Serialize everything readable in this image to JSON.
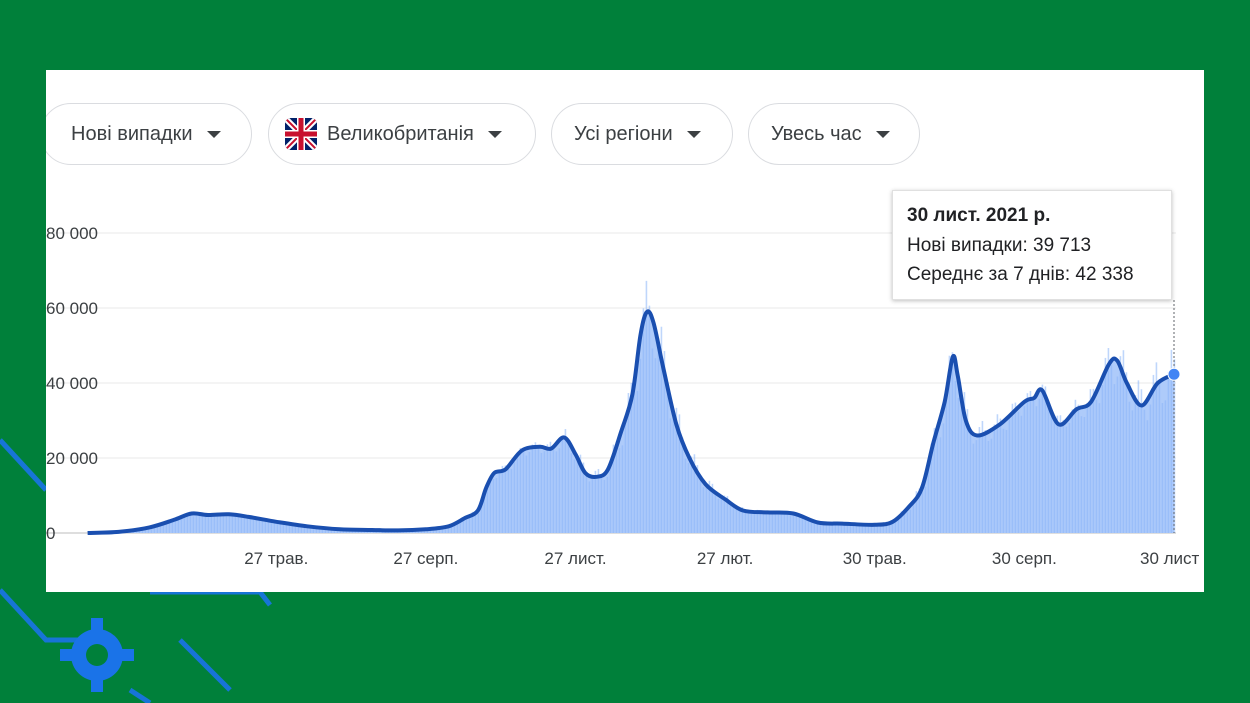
{
  "filters": [
    {
      "label": "Нові випадки"
    },
    {
      "label": "Великобританія",
      "flag_icon": "uk-flag-icon"
    },
    {
      "label": "Усі регіони"
    },
    {
      "label": "Увесь час"
    }
  ],
  "tooltip": {
    "date": "30 лист. 2021 р.",
    "new_cases": "Нові випадки: 39 713",
    "avg7": "Середнє за 7 днів: 42 338"
  },
  "colors": {
    "background": "#00803a",
    "line": "#1a4fb0",
    "area": "#aecbfa",
    "bars": "#8ab4f8",
    "deco": "#1a73e8"
  },
  "chart_data": {
    "type": "area",
    "title": "",
    "xlabel": "",
    "ylabel": "",
    "ylim": [
      0,
      80000
    ],
    "yticks": [
      {
        "value": 0,
        "label": "0"
      },
      {
        "value": 20000,
        "label": "20 000"
      },
      {
        "value": 40000,
        "label": "40 000"
      },
      {
        "value": 60000,
        "label": "60 000"
      },
      {
        "value": 80000,
        "label": "80 000"
      }
    ],
    "xticks": [
      {
        "date": "2020-05-27",
        "label": "27 трав."
      },
      {
        "date": "2020-08-27",
        "label": "27 серп."
      },
      {
        "date": "2020-11-27",
        "label": "27 лист."
      },
      {
        "date": "2021-02-27",
        "label": "27 лют."
      },
      {
        "date": "2021-05-30",
        "label": "30 трав."
      },
      {
        "date": "2021-08-30",
        "label": "30 серп."
      },
      {
        "date": "2021-11-30",
        "label": "30 лист"
      }
    ],
    "xrange": [
      "2020-01-31",
      "2021-11-30"
    ],
    "grid": true,
    "series": [
      {
        "name": "Середнє за 7 днів",
        "points": [
          [
            "2020-02-01",
            0
          ],
          [
            "2020-02-20",
            300
          ],
          [
            "2020-03-10",
            1500
          ],
          [
            "2020-03-25",
            3500
          ],
          [
            "2020-04-05",
            5200
          ],
          [
            "2020-04-15",
            4800
          ],
          [
            "2020-04-28",
            5000
          ],
          [
            "2020-05-10",
            4300
          ],
          [
            "2020-05-27",
            3000
          ],
          [
            "2020-06-15",
            1800
          ],
          [
            "2020-07-05",
            1000
          ],
          [
            "2020-07-25",
            800
          ],
          [
            "2020-08-10",
            700
          ],
          [
            "2020-08-27",
            1000
          ],
          [
            "2020-09-10",
            1800
          ],
          [
            "2020-09-20",
            4000
          ],
          [
            "2020-09-28",
            6000
          ],
          [
            "2020-10-03",
            12000
          ],
          [
            "2020-10-08",
            16000
          ],
          [
            "2020-10-15",
            17000
          ],
          [
            "2020-10-25",
            22000
          ],
          [
            "2020-11-05",
            23000
          ],
          [
            "2020-11-12",
            22500
          ],
          [
            "2020-11-20",
            25500
          ],
          [
            "2020-11-27",
            21000
          ],
          [
            "2020-12-03",
            16000
          ],
          [
            "2020-12-10",
            15000
          ],
          [
            "2020-12-17",
            17000
          ],
          [
            "2020-12-25",
            27000
          ],
          [
            "2021-01-01",
            37000
          ],
          [
            "2021-01-06",
            53000
          ],
          [
            "2021-01-10",
            59000
          ],
          [
            "2021-01-14",
            56000
          ],
          [
            "2021-01-20",
            44000
          ],
          [
            "2021-01-28",
            29000
          ],
          [
            "2021-02-05",
            20000
          ],
          [
            "2021-02-15",
            13000
          ],
          [
            "2021-02-27",
            9000
          ],
          [
            "2021-03-10",
            6000
          ],
          [
            "2021-03-25",
            5500
          ],
          [
            "2021-04-10",
            5200
          ],
          [
            "2021-04-25",
            2800
          ],
          [
            "2021-05-10",
            2500
          ],
          [
            "2021-05-30",
            2200
          ],
          [
            "2021-06-10",
            3000
          ],
          [
            "2021-06-20",
            7000
          ],
          [
            "2021-06-28",
            12000
          ],
          [
            "2021-07-05",
            24000
          ],
          [
            "2021-07-12",
            35000
          ],
          [
            "2021-07-17",
            47000
          ],
          [
            "2021-07-20",
            42000
          ],
          [
            "2021-07-25",
            30000
          ],
          [
            "2021-08-01",
            26000
          ],
          [
            "2021-08-15",
            29000
          ],
          [
            "2021-08-30",
            35000
          ],
          [
            "2021-09-05",
            36000
          ],
          [
            "2021-09-10",
            38000
          ],
          [
            "2021-09-20",
            29000
          ],
          [
            "2021-10-01",
            33000
          ],
          [
            "2021-10-10",
            35000
          ],
          [
            "2021-10-21",
            45000
          ],
          [
            "2021-10-26",
            46000
          ],
          [
            "2021-11-01",
            40000
          ],
          [
            "2021-11-10",
            34000
          ],
          [
            "2021-11-20",
            40000
          ],
          [
            "2021-11-30",
            42338
          ]
        ]
      }
    ],
    "highlight": {
      "date": "2021-11-30",
      "value": 42338
    }
  }
}
